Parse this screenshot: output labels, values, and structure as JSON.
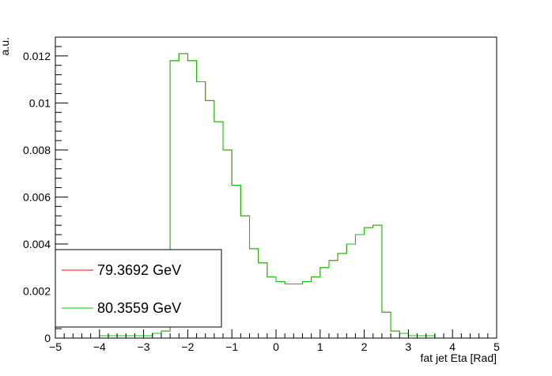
{
  "chart_data": {
    "type": "line",
    "xlabel": "fat jet Eta [Rad]",
    "ylabel": "a.u.",
    "xlim": [
      -5,
      5
    ],
    "ylim": [
      0,
      0.0128
    ],
    "xticks": [
      -5,
      -4,
      -3,
      -2,
      -1,
      0,
      1,
      2,
      3,
      4,
      5
    ],
    "xtick_labels": [
      "−5",
      "−4",
      "−3",
      "−2",
      "−1",
      "0",
      "1",
      "2",
      "3",
      "4",
      "5"
    ],
    "yticks": [
      0,
      0.002,
      0.004,
      0.006,
      0.008,
      0.01,
      0.012
    ],
    "ytick_labels": [
      "0",
      "0.002",
      "0.004",
      "0.006",
      "0.008",
      "0.01",
      "0.012"
    ],
    "grid": false,
    "legend_position": "bottom-left",
    "bin_edges": [
      -4,
      -3.8,
      -3.6,
      -3.4,
      -3.2,
      -3,
      -2.8,
      -2.6,
      -2.4,
      -2.2,
      -2,
      -1.8,
      -1.6,
      -1.4,
      -1.2,
      -1,
      -0.8,
      -0.6,
      -0.4,
      -0.2,
      0,
      0.2,
      0.4,
      0.6,
      0.8,
      1,
      1.2,
      1.4,
      1.6,
      1.8,
      2,
      2.2,
      2.4,
      2.6,
      2.8,
      3,
      3.2,
      3.4,
      3.6,
      3.8,
      4
    ],
    "series": [
      {
        "name": "79.3692 GeV",
        "color": "#ff0000",
        "values": [
          0.0001,
          0.0001,
          0.0001,
          0.0001,
          0.0001,
          0.0001,
          0.0002,
          0.0003,
          0.0118,
          0.0121,
          0.0118,
          0.0109,
          0.0101,
          0.0092,
          0.008,
          0.0065,
          0.0052,
          0.0038,
          0.0032,
          0.0026,
          0.0024,
          0.0023,
          0.0023,
          0.0024,
          0.0026,
          0.003,
          0.0033,
          0.0036,
          0.004,
          0.0044,
          0.0047,
          0.0048,
          0.0011,
          0.0003,
          0.0002,
          0.0001,
          0.0001,
          0.0001,
          0.0,
          0.0
        ]
      },
      {
        "name": "80.3559 GeV",
        "color": "#00cc00",
        "values": [
          0.0001,
          0.0001,
          0.0001,
          0.0001,
          0.0001,
          0.0001,
          0.0002,
          0.0003,
          0.0118,
          0.0121,
          0.0118,
          0.0109,
          0.0101,
          0.0092,
          0.008,
          0.0065,
          0.0052,
          0.0038,
          0.0032,
          0.0026,
          0.0024,
          0.0023,
          0.0023,
          0.0024,
          0.0026,
          0.003,
          0.0033,
          0.0036,
          0.004,
          0.0044,
          0.0047,
          0.0048,
          0.0011,
          0.0003,
          0.0002,
          0.0001,
          0.0001,
          0.0001,
          0.0,
          0.0
        ]
      }
    ]
  }
}
